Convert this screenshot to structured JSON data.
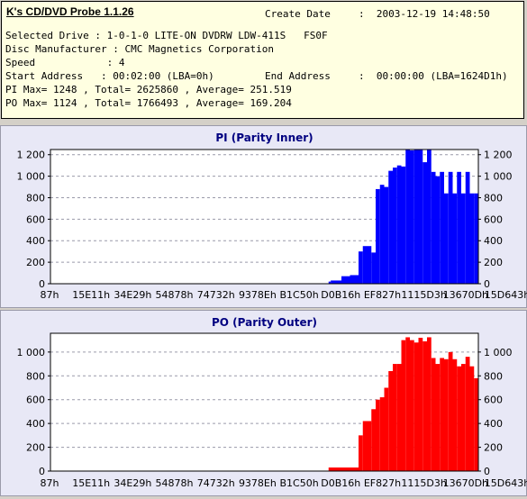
{
  "app": {
    "title": "K's CD/DVD Probe 1.1.26"
  },
  "info": {
    "create_date_label": "Create Date",
    "create_date_value": ":  2003-12-19 14:48:50",
    "selected_drive": "Selected Drive : 1-0-1-0 LITE-ON DVDRW LDW-411S   FS0F",
    "disc_manufacturer": "Disc Manufacturer : CMC Magnetics Corporation",
    "speed": "Speed            : 4",
    "start_address": "Start Address   : 00:02:00 (LBA=0h)",
    "end_address_label": "End Address",
    "end_address_value": ":  00:00:00 (LBA=1624D1h)",
    "pi_stats": "PI Max= 1248 , Total= 2625860 , Average= 251.519",
    "po_stats": "PO Max= 1124 , Total= 1766493 , Average= 169.204"
  },
  "colors": {
    "pi": "#0000ff",
    "po": "#ff0000",
    "plot_bg": "#ffffff",
    "grid": "#9a9aaa",
    "title": "#000080"
  },
  "chart_data": [
    {
      "type": "bar",
      "title": "PI (Parity Inner)",
      "color": "#0000ff",
      "x_tick_labels": [
        "87h",
        "15E11h",
        "34E29h",
        "54878h",
        "74732h",
        "9378Eh",
        "B1C50h",
        "D0B16h",
        "EF827h",
        "1115D3h",
        "13670Dh",
        "15D643h"
      ],
      "y_ticks": [
        0,
        200,
        400,
        600,
        800,
        1000,
        1200
      ],
      "ylim": [
        0,
        1248
      ],
      "grid": true,
      "series": [
        {
          "x": [
            0.05,
            0.1,
            0.15,
            0.2,
            0.25,
            0.3,
            0.35,
            0.4,
            0.45,
            0.5,
            0.55,
            0.6,
            0.65,
            0.655,
            0.68,
            0.7,
            0.72,
            0.73,
            0.75,
            0.76,
            0.77,
            0.78,
            0.79,
            0.8,
            0.81,
            0.82,
            0.83,
            0.84,
            0.85,
            0.86,
            0.87,
            0.88,
            0.89,
            0.9,
            0.91,
            0.92,
            0.93,
            0.94,
            0.95,
            0.96,
            0.97,
            0.98,
            0.99,
            1.0
          ],
          "values": [
            0,
            0,
            0,
            0,
            0,
            0,
            0,
            0,
            0,
            0,
            0,
            0,
            0,
            20,
            30,
            70,
            80,
            300,
            350,
            290,
            880,
            920,
            900,
            1050,
            1080,
            1100,
            1090,
            1248,
            1240,
            1245,
            1248,
            1130,
            1248,
            1040,
            1000,
            1040,
            840,
            1040,
            840,
            1040,
            840,
            1040,
            840,
            840
          ]
        }
      ]
    },
    {
      "type": "bar",
      "title": "PO (Parity Outer)",
      "color": "#ff0000",
      "x_tick_labels": [
        "87h",
        "15E11h",
        "34E29h",
        "54878h",
        "74732h",
        "9378Eh",
        "B1C50h",
        "D0B16h",
        "EF827h",
        "1115D3h",
        "13670Dh",
        "15D643h"
      ],
      "y_ticks": [
        0,
        200,
        400,
        600,
        800,
        1000
      ],
      "ylim": [
        0,
        1124
      ],
      "grid": true,
      "series": [
        {
          "x": [
            0.05,
            0.1,
            0.15,
            0.2,
            0.25,
            0.3,
            0.35,
            0.4,
            0.45,
            0.5,
            0.55,
            0.6,
            0.65,
            0.7,
            0.72,
            0.73,
            0.75,
            0.76,
            0.77,
            0.78,
            0.79,
            0.8,
            0.81,
            0.82,
            0.83,
            0.84,
            0.85,
            0.86,
            0.87,
            0.88,
            0.89,
            0.9,
            0.91,
            0.92,
            0.93,
            0.94,
            0.95,
            0.96,
            0.97,
            0.98,
            0.99,
            1.0
          ],
          "values": [
            0,
            0,
            0,
            0,
            0,
            0,
            0,
            0,
            0,
            0,
            0,
            0,
            0,
            30,
            30,
            300,
            420,
            520,
            600,
            620,
            700,
            840,
            900,
            900,
            1100,
            1124,
            1100,
            1080,
            1120,
            1090,
            1124,
            950,
            900,
            950,
            940,
            1000,
            940,
            880,
            900,
            960,
            880,
            780
          ]
        }
      ]
    }
  ]
}
